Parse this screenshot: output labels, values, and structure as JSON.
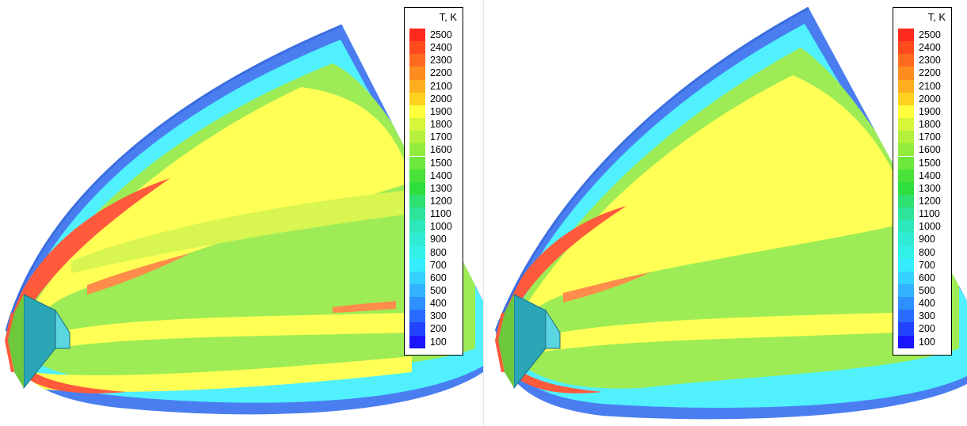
{
  "legend": {
    "title": "T, K",
    "levels": [
      {
        "value": "2500",
        "color": "#ff2a1e"
      },
      {
        "value": "2400",
        "color": "#ff4a1e"
      },
      {
        "value": "2300",
        "color": "#ff6a1e"
      },
      {
        "value": "2200",
        "color": "#ff8c1e"
      },
      {
        "value": "2100",
        "color": "#ffaf1e"
      },
      {
        "value": "2000",
        "color": "#ffd21e"
      },
      {
        "value": "1900",
        "color": "#ffff3c"
      },
      {
        "value": "1800",
        "color": "#d8f53a"
      },
      {
        "value": "1700",
        "color": "#b4f03c"
      },
      {
        "value": "1600",
        "color": "#92ec3e"
      },
      {
        "value": "1500",
        "color": "#6ee83c"
      },
      {
        "value": "1400",
        "color": "#48e23a"
      },
      {
        "value": "1300",
        "color": "#2ede3c"
      },
      {
        "value": "1200",
        "color": "#2ee070"
      },
      {
        "value": "1100",
        "color": "#2ee49a"
      },
      {
        "value": "1000",
        "color": "#2ee8bc"
      },
      {
        "value": "900",
        "color": "#30ecd6"
      },
      {
        "value": "800",
        "color": "#30f0e8"
      },
      {
        "value": "700",
        "color": "#34eeff"
      },
      {
        "value": "600",
        "color": "#34d2ff"
      },
      {
        "value": "500",
        "color": "#32b2ff"
      },
      {
        "value": "400",
        "color": "#2e90ff"
      },
      {
        "value": "300",
        "color": "#2a6cff"
      },
      {
        "value": "200",
        "color": "#2244ff"
      },
      {
        "value": "100",
        "color": "#1a14ff"
      }
    ]
  },
  "panels": [
    {
      "id": "left",
      "legend_title": "T, K"
    },
    {
      "id": "right",
      "legend_title": "T, K"
    }
  ],
  "field_colors": {
    "outer_band": "#4a7ef0",
    "cyan": "#50f0ff",
    "light_cyan": "#6cf0e8",
    "green": "#9eec55",
    "yellow_green": "#d8f550",
    "yellow": "#ffff55",
    "red": "#ff5a3c",
    "body_teal": "#2aa6b6"
  }
}
